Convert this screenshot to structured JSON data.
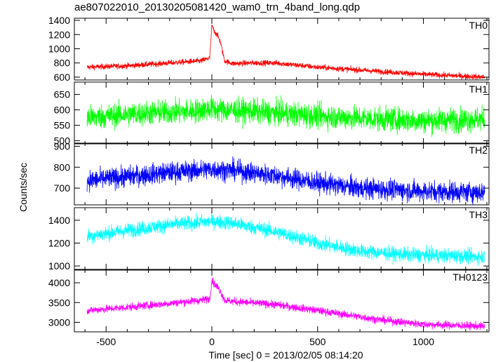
{
  "title": "ae807022010_20130205081420_wam0_trn_4band_long.qdp",
  "chart_data": {
    "type": "line",
    "title": "ae807022010_20130205081420_wam0_trn_4band_long.qdp",
    "xlabel": "Time [sec] 0 = 2013/02/05 08:14:20",
    "ylabel": "Counts/sec",
    "xlim": [
      -650,
      1310
    ],
    "xticks": [
      -500,
      0,
      500,
      1000
    ],
    "xdata_range": [
      -590,
      1290
    ],
    "panels": [
      {
        "name": "TH0",
        "color": "#ff0000",
        "ylim": [
          560,
          1430
        ],
        "yticks": [
          600,
          800,
          1000,
          1200,
          1400
        ],
        "noise": 28,
        "x": [
          -590,
          -400,
          -200,
          -50,
          -10,
          0,
          10,
          25,
          40,
          60,
          100,
          200,
          300,
          500,
          800,
          1000,
          1290
        ],
        "y": [
          740,
          760,
          800,
          830,
          870,
          1330,
          1250,
          1200,
          1100,
          830,
          790,
          800,
          800,
          740,
          680,
          640,
          600
        ]
      },
      {
        "name": "TH1",
        "color": "#00ff00",
        "ylim": [
          490,
          690
        ],
        "yticks": [
          500,
          550,
          600,
          650
        ],
        "noise": 28,
        "x": [
          -590,
          -300,
          -100,
          0,
          30,
          200,
          500,
          800,
          1000,
          1290
        ],
        "y": [
          575,
          590,
          595,
          605,
          600,
          595,
          580,
          570,
          565,
          570
        ]
      },
      {
        "name": "TH2",
        "color": "#0000ff",
        "ylim": [
          620,
          915
        ],
        "yticks": [
          700,
          800,
          900
        ],
        "noise": 35,
        "x": [
          -590,
          -400,
          -200,
          0,
          100,
          300,
          500,
          700,
          1000,
          1290
        ],
        "y": [
          735,
          755,
          775,
          790,
          785,
          760,
          725,
          700,
          685,
          680
        ]
      },
      {
        "name": "TH3",
        "color": "#00ffff",
        "ylim": [
          970,
          1510
        ],
        "yticks": [
          1000,
          1200,
          1400
        ],
        "noise": 45,
        "x": [
          -590,
          -400,
          -200,
          0,
          100,
          300,
          500,
          700,
          900,
          1100,
          1290
        ],
        "y": [
          1260,
          1310,
          1360,
          1390,
          1375,
          1300,
          1200,
          1130,
          1100,
          1090,
          1080
        ]
      },
      {
        "name": "TH0123",
        "color": "#ff00ff",
        "ylim": [
          2760,
          4320
        ],
        "yticks": [
          3000,
          3500,
          4000
        ],
        "noise": 70,
        "x": [
          -590,
          -400,
          -200,
          -50,
          -10,
          0,
          10,
          25,
          40,
          60,
          100,
          300,
          500,
          800,
          1000,
          1290
        ],
        "y": [
          3300,
          3380,
          3480,
          3560,
          3600,
          4080,
          3980,
          3900,
          3800,
          3560,
          3530,
          3450,
          3300,
          3060,
          2950,
          2900
        ]
      }
    ]
  }
}
